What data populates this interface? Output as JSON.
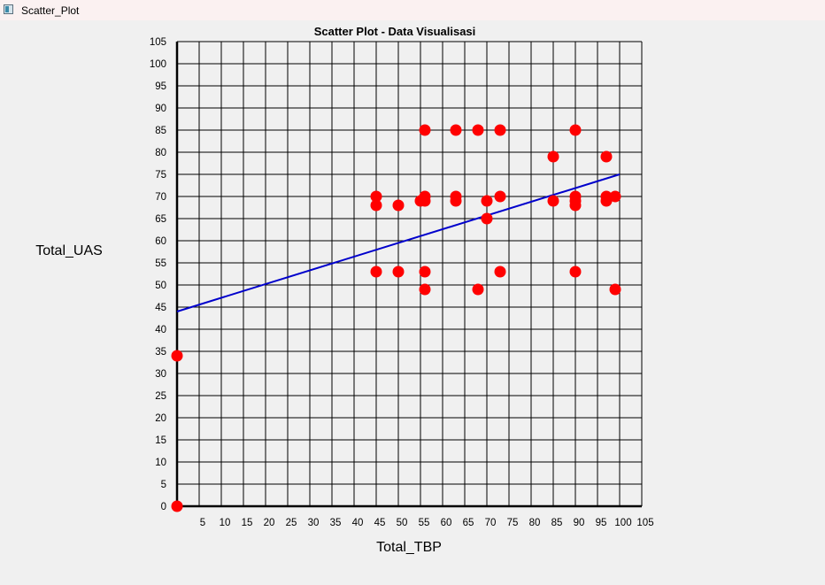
{
  "window": {
    "title": "Scatter_Plot",
    "icon": "app-window-icon"
  },
  "chart_data": {
    "type": "scatter",
    "title": "Scatter Plot - Data Visualisasi",
    "xlabel": "Total_TBP",
    "ylabel": "Total_UAS",
    "xlim": [
      0,
      105
    ],
    "ylim": [
      0,
      105
    ],
    "xticks": [
      5,
      10,
      15,
      20,
      25,
      30,
      35,
      40,
      45,
      50,
      55,
      60,
      65,
      70,
      75,
      80,
      85,
      90,
      95,
      100,
      105
    ],
    "yticks": [
      0,
      5,
      10,
      15,
      20,
      25,
      30,
      35,
      40,
      45,
      50,
      55,
      60,
      65,
      70,
      75,
      80,
      85,
      90,
      95,
      100,
      105
    ],
    "grid": true,
    "point_color": "#ff0000",
    "line_color": "#0000cc",
    "points": [
      {
        "x": 0,
        "y": 0
      },
      {
        "x": 0,
        "y": 34
      },
      {
        "x": 45,
        "y": 70
      },
      {
        "x": 45,
        "y": 68
      },
      {
        "x": 45,
        "y": 53
      },
      {
        "x": 50,
        "y": 68
      },
      {
        "x": 50,
        "y": 53
      },
      {
        "x": 55,
        "y": 69
      },
      {
        "x": 56,
        "y": 70
      },
      {
        "x": 56,
        "y": 69
      },
      {
        "x": 56,
        "y": 85
      },
      {
        "x": 56,
        "y": 53
      },
      {
        "x": 56,
        "y": 49
      },
      {
        "x": 63,
        "y": 85
      },
      {
        "x": 63,
        "y": 70
      },
      {
        "x": 63,
        "y": 69
      },
      {
        "x": 68,
        "y": 85
      },
      {
        "x": 68,
        "y": 49
      },
      {
        "x": 70,
        "y": 69
      },
      {
        "x": 70,
        "y": 65
      },
      {
        "x": 73,
        "y": 85
      },
      {
        "x": 73,
        "y": 70
      },
      {
        "x": 73,
        "y": 53
      },
      {
        "x": 85,
        "y": 79
      },
      {
        "x": 85,
        "y": 69
      },
      {
        "x": 90,
        "y": 85
      },
      {
        "x": 90,
        "y": 70
      },
      {
        "x": 90,
        "y": 69
      },
      {
        "x": 90,
        "y": 68
      },
      {
        "x": 90,
        "y": 53
      },
      {
        "x": 97,
        "y": 79
      },
      {
        "x": 97,
        "y": 70
      },
      {
        "x": 97,
        "y": 69
      },
      {
        "x": 99,
        "y": 70
      },
      {
        "x": 99,
        "y": 49
      }
    ],
    "trend_line": {
      "x": [
        0,
        100
      ],
      "y": [
        44,
        75
      ]
    }
  }
}
